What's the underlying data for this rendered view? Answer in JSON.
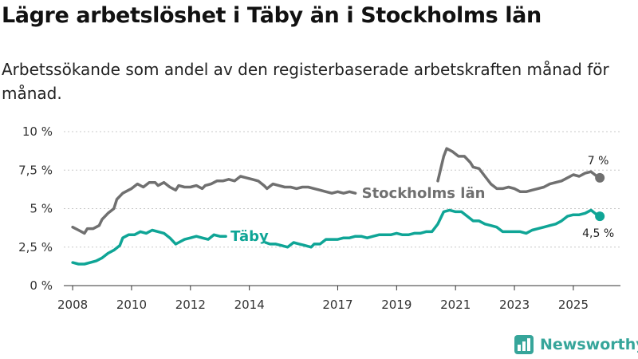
{
  "header": {
    "title": "Lägre arbetslöshet i Täby än i Stockholms län",
    "subtitle": "Arbetssökande som andel av den registerbaserade arbetskraften månad för månad."
  },
  "chart_data": {
    "type": "line",
    "xlim": [
      2007.7,
      2026.6
    ],
    "ylim": [
      0,
      10
    ],
    "y_ticks": [
      {
        "value": 0,
        "label": "0 %"
      },
      {
        "value": 2.5,
        "label": "2,5 %"
      },
      {
        "value": 5,
        "label": "5 %"
      },
      {
        "value": 7.5,
        "label": "7,5 %"
      },
      {
        "value": 10,
        "label": "10 %"
      }
    ],
    "x_ticks": [
      {
        "value": 2008,
        "label": "2008"
      },
      {
        "value": 2010,
        "label": "2010"
      },
      {
        "value": 2012,
        "label": "2012"
      },
      {
        "value": 2014,
        "label": "2014"
      },
      {
        "value": 2017,
        "label": "2017"
      },
      {
        "value": 2019,
        "label": "2019"
      },
      {
        "value": 2021,
        "label": "2021"
      },
      {
        "value": 2023,
        "label": "2023"
      },
      {
        "value": 2025,
        "label": "2025"
      }
    ],
    "series": [
      {
        "name": "Stockholms län",
        "color": "#707070",
        "label_pos": [
          2017.6,
          6.0
        ],
        "end_label": "7 %",
        "gap": [
          2017.6,
          2020.4
        ],
        "points": [
          [
            2008.0,
            3.8
          ],
          [
            2008.2,
            3.6
          ],
          [
            2008.4,
            3.4
          ],
          [
            2008.5,
            3.7
          ],
          [
            2008.7,
            3.7
          ],
          [
            2008.9,
            3.9
          ],
          [
            2009.0,
            4.3
          ],
          [
            2009.2,
            4.7
          ],
          [
            2009.4,
            5.0
          ],
          [
            2009.5,
            5.6
          ],
          [
            2009.7,
            6.0
          ],
          [
            2009.9,
            6.2
          ],
          [
            2010.0,
            6.3
          ],
          [
            2010.2,
            6.6
          ],
          [
            2010.4,
            6.4
          ],
          [
            2010.6,
            6.7
          ],
          [
            2010.8,
            6.7
          ],
          [
            2010.9,
            6.5
          ],
          [
            2011.1,
            6.7
          ],
          [
            2011.3,
            6.4
          ],
          [
            2011.5,
            6.2
          ],
          [
            2011.6,
            6.5
          ],
          [
            2011.8,
            6.4
          ],
          [
            2012.0,
            6.4
          ],
          [
            2012.2,
            6.5
          ],
          [
            2012.4,
            6.3
          ],
          [
            2012.5,
            6.5
          ],
          [
            2012.7,
            6.6
          ],
          [
            2012.9,
            6.8
          ],
          [
            2013.1,
            6.8
          ],
          [
            2013.3,
            6.9
          ],
          [
            2013.5,
            6.8
          ],
          [
            2013.7,
            7.1
          ],
          [
            2013.9,
            7.0
          ],
          [
            2014.1,
            6.9
          ],
          [
            2014.3,
            6.8
          ],
          [
            2014.5,
            6.5
          ],
          [
            2014.6,
            6.3
          ],
          [
            2014.8,
            6.6
          ],
          [
            2015.0,
            6.5
          ],
          [
            2015.2,
            6.4
          ],
          [
            2015.4,
            6.4
          ],
          [
            2015.6,
            6.3
          ],
          [
            2015.8,
            6.4
          ],
          [
            2016.0,
            6.4
          ],
          [
            2016.2,
            6.3
          ],
          [
            2016.4,
            6.2
          ],
          [
            2016.6,
            6.1
          ],
          [
            2016.8,
            6.0
          ],
          [
            2017.0,
            6.1
          ],
          [
            2017.2,
            6.0
          ],
          [
            2017.4,
            6.1
          ],
          [
            2017.6,
            6.0
          ],
          [
            2020.4,
            6.8
          ],
          [
            2020.5,
            7.6
          ],
          [
            2020.6,
            8.4
          ],
          [
            2020.7,
            8.9
          ],
          [
            2020.9,
            8.7
          ],
          [
            2021.1,
            8.4
          ],
          [
            2021.3,
            8.4
          ],
          [
            2021.5,
            8.0
          ],
          [
            2021.6,
            7.7
          ],
          [
            2021.8,
            7.6
          ],
          [
            2022.0,
            7.1
          ],
          [
            2022.2,
            6.6
          ],
          [
            2022.4,
            6.3
          ],
          [
            2022.6,
            6.3
          ],
          [
            2022.8,
            6.4
          ],
          [
            2023.0,
            6.3
          ],
          [
            2023.2,
            6.1
          ],
          [
            2023.4,
            6.1
          ],
          [
            2023.6,
            6.2
          ],
          [
            2023.8,
            6.3
          ],
          [
            2024.0,
            6.4
          ],
          [
            2024.2,
            6.6
          ],
          [
            2024.4,
            6.7
          ],
          [
            2024.6,
            6.8
          ],
          [
            2024.8,
            7.0
          ],
          [
            2025.0,
            7.2
          ],
          [
            2025.2,
            7.1
          ],
          [
            2025.4,
            7.3
          ],
          [
            2025.6,
            7.4
          ],
          [
            2025.8,
            7.1
          ],
          [
            2025.9,
            7.0
          ]
        ]
      },
      {
        "name": "Täby",
        "color": "#0fa596",
        "label_pos": [
          2013.2,
          3.2
        ],
        "end_label": "4,5 %",
        "gap": [
          2013.2,
          2014.55
        ],
        "points": [
          [
            2008.0,
            1.5
          ],
          [
            2008.2,
            1.4
          ],
          [
            2008.4,
            1.4
          ],
          [
            2008.6,
            1.5
          ],
          [
            2008.8,
            1.6
          ],
          [
            2009.0,
            1.8
          ],
          [
            2009.2,
            2.1
          ],
          [
            2009.4,
            2.3
          ],
          [
            2009.6,
            2.6
          ],
          [
            2009.7,
            3.1
          ],
          [
            2009.9,
            3.3
          ],
          [
            2010.1,
            3.3
          ],
          [
            2010.3,
            3.5
          ],
          [
            2010.5,
            3.4
          ],
          [
            2010.7,
            3.6
          ],
          [
            2010.9,
            3.5
          ],
          [
            2011.1,
            3.4
          ],
          [
            2011.3,
            3.1
          ],
          [
            2011.5,
            2.7
          ],
          [
            2011.6,
            2.8
          ],
          [
            2011.8,
            3.0
          ],
          [
            2012.0,
            3.1
          ],
          [
            2012.2,
            3.2
          ],
          [
            2012.4,
            3.1
          ],
          [
            2012.6,
            3.0
          ],
          [
            2012.8,
            3.3
          ],
          [
            2013.0,
            3.2
          ],
          [
            2013.2,
            3.2
          ],
          [
            2014.55,
            2.8
          ],
          [
            2014.7,
            2.7
          ],
          [
            2014.9,
            2.7
          ],
          [
            2015.1,
            2.6
          ],
          [
            2015.3,
            2.5
          ],
          [
            2015.5,
            2.8
          ],
          [
            2015.7,
            2.7
          ],
          [
            2015.9,
            2.6
          ],
          [
            2016.1,
            2.5
          ],
          [
            2016.2,
            2.7
          ],
          [
            2016.4,
            2.7
          ],
          [
            2016.6,
            3.0
          ],
          [
            2016.8,
            3.0
          ],
          [
            2017.0,
            3.0
          ],
          [
            2017.2,
            3.1
          ],
          [
            2017.4,
            3.1
          ],
          [
            2017.6,
            3.2
          ],
          [
            2017.8,
            3.2
          ],
          [
            2018.0,
            3.1
          ],
          [
            2018.2,
            3.2
          ],
          [
            2018.4,
            3.3
          ],
          [
            2018.6,
            3.3
          ],
          [
            2018.8,
            3.3
          ],
          [
            2019.0,
            3.4
          ],
          [
            2019.2,
            3.3
          ],
          [
            2019.4,
            3.3
          ],
          [
            2019.6,
            3.4
          ],
          [
            2019.8,
            3.4
          ],
          [
            2020.0,
            3.5
          ],
          [
            2020.2,
            3.5
          ],
          [
            2020.4,
            4.0
          ],
          [
            2020.6,
            4.8
          ],
          [
            2020.8,
            4.9
          ],
          [
            2021.0,
            4.8
          ],
          [
            2021.2,
            4.8
          ],
          [
            2021.4,
            4.5
          ],
          [
            2021.6,
            4.2
          ],
          [
            2021.8,
            4.2
          ],
          [
            2022.0,
            4.0
          ],
          [
            2022.2,
            3.9
          ],
          [
            2022.4,
            3.8
          ],
          [
            2022.6,
            3.5
          ],
          [
            2022.8,
            3.5
          ],
          [
            2023.0,
            3.5
          ],
          [
            2023.2,
            3.5
          ],
          [
            2023.4,
            3.4
          ],
          [
            2023.6,
            3.6
          ],
          [
            2023.8,
            3.7
          ],
          [
            2024.0,
            3.8
          ],
          [
            2024.2,
            3.9
          ],
          [
            2024.4,
            4.0
          ],
          [
            2024.6,
            4.2
          ],
          [
            2024.8,
            4.5
          ],
          [
            2025.0,
            4.6
          ],
          [
            2025.2,
            4.6
          ],
          [
            2025.4,
            4.7
          ],
          [
            2025.6,
            4.9
          ],
          [
            2025.8,
            4.6
          ],
          [
            2025.9,
            4.5
          ]
        ]
      }
    ]
  },
  "footer": {
    "brand": "Newsworthy"
  }
}
